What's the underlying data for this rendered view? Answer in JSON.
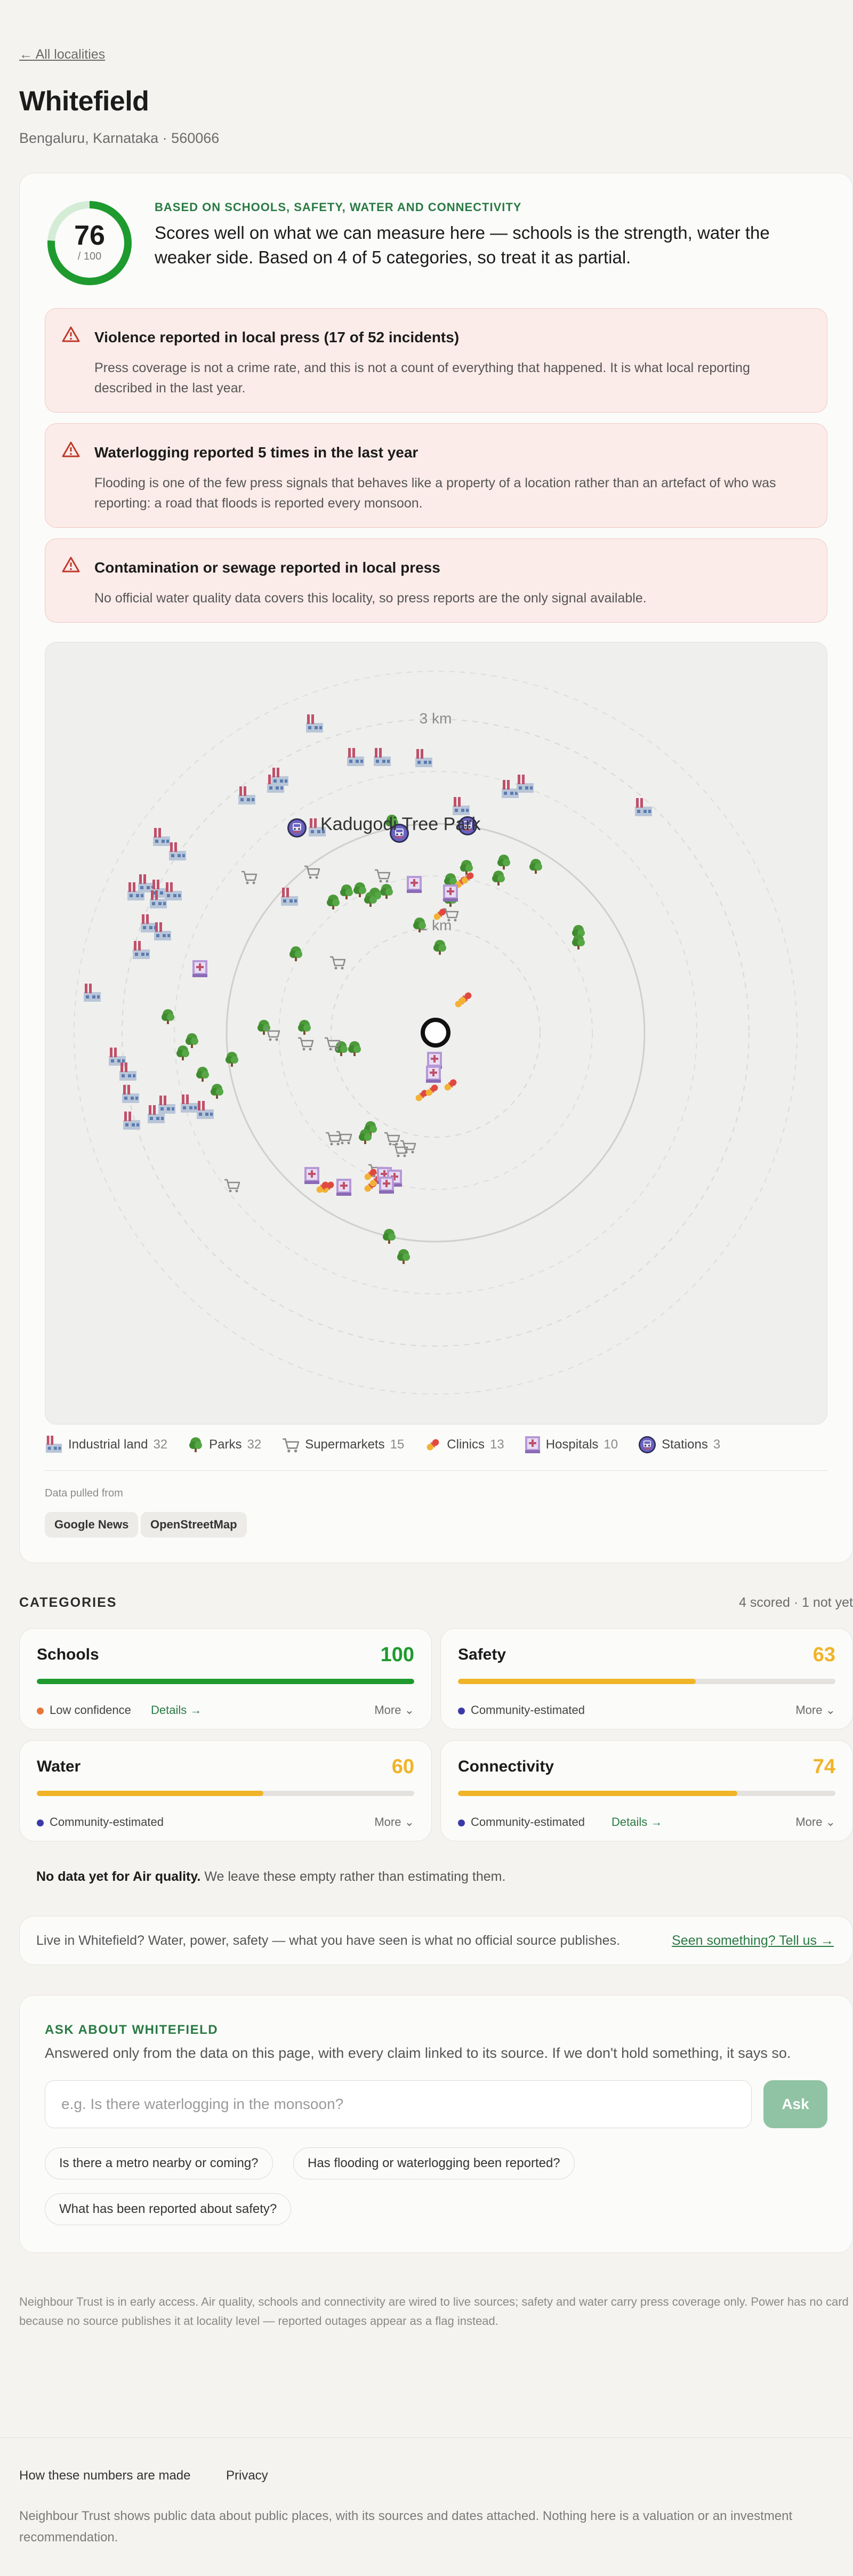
{
  "nav": {
    "back_label": "← All localities"
  },
  "locality": {
    "name": "Whitefield",
    "location": "Bengaluru, Karnataka · 560066"
  },
  "score": {
    "value": "76",
    "out_of": "/ 100",
    "fraction": 0.76,
    "kicker": "BASED ON SCHOOLS, SAFETY, WATER AND CONNECTIVITY",
    "summary": "Scores well on what we can measure here — schools is the strength, water the weaker side. Based on 4 of 5 categories, so treat it as partial."
  },
  "flags": [
    {
      "title": "Violence reported in local press (17 of 52 incidents)",
      "body": "Press coverage is not a crime rate, and this is not a count of everything that happened. It is what local reporting described in the last year."
    },
    {
      "title": "Waterlogging reported 5 times in the last year",
      "body": "Flooding is one of the few press signals that behaves like a property of a location rather than an artefact of who was reporting: a road that floods is reported every monsoon."
    },
    {
      "title": "Contamination or sewage reported in local press",
      "body": "No official water quality data covers this locality, so press reports are the only signal available."
    }
  ],
  "map": {
    "ring_labels": [
      "1 km",
      "3 km"
    ],
    "place_label": "Kadugodi Tree Park"
  },
  "legend": [
    {
      "label": "Industrial land",
      "count": "32",
      "icon": "factory-icon"
    },
    {
      "label": "Parks",
      "count": "32",
      "icon": "tree-icon"
    },
    {
      "label": "Supermarkets",
      "count": "15",
      "icon": "cart-icon"
    },
    {
      "label": "Clinics",
      "count": "13",
      "icon": "pill-icon"
    },
    {
      "label": "Hospitals",
      "count": "10",
      "icon": "hospital-icon"
    },
    {
      "label": "Stations",
      "count": "3",
      "icon": "station-icon"
    }
  ],
  "sources": {
    "heading": "Data pulled from",
    "items": [
      "Google News",
      "OpenStreetMap"
    ]
  },
  "categories": {
    "heading": "CATEGORIES",
    "meta": "4 scored · 1 not yet",
    "items": [
      {
        "name": "Schools",
        "score": "100",
        "fraction": 1.0,
        "color": "#1e9a2e",
        "confidence": "Low confidence",
        "dot_color": "#e8753a",
        "details": "Details →",
        "more": "More ⌄"
      },
      {
        "name": "Safety",
        "score": "63",
        "fraction": 0.63,
        "color": "#f0b429",
        "confidence": "Community-estimated",
        "dot_color": "#3b3aa8",
        "details": "",
        "more": "More ⌄"
      },
      {
        "name": "Water",
        "score": "60",
        "fraction": 0.6,
        "color": "#f0b429",
        "confidence": "Community-estimated",
        "dot_color": "#3b3aa8",
        "details": "",
        "more": "More ⌄"
      },
      {
        "name": "Connectivity",
        "score": "74",
        "fraction": 0.74,
        "color": "#f0b429",
        "confidence": "Community-estimated",
        "dot_color": "#3b3aa8",
        "details": "Details →",
        "more": "More ⌄"
      }
    ],
    "no_data_bold": "No data yet for Air quality.",
    "no_data_rest": " We leave these empty rather than estimating them."
  },
  "live": {
    "text": "Live in Whitefield? Water, power, safety — what you have seen is what no official source publishes.",
    "link": "Seen something? Tell us →"
  },
  "ask": {
    "kicker": "ASK ABOUT WHITEFIELD",
    "subtitle": "Answered only from the data on this page, with every claim linked to its source. If we don't hold something, it says so.",
    "placeholder": "e.g. Is there waterlogging in the monsoon?",
    "button": "Ask",
    "suggestions": [
      "Is there a metro nearby or coming?",
      "Has flooding or waterlogging been reported?",
      "What has been reported about safety?"
    ]
  },
  "fineprint": "Neighbour Trust is in early access. Air quality, schools and connectivity are wired to live sources; safety and water carry press coverage only. Power has no card because no source publishes it at locality level — reported outages appear as a flag instead.",
  "footer": {
    "links": [
      "How these numbers are made",
      "Privacy"
    ],
    "text": "Neighbour Trust shows public data about public places, with its sources and dates attached. Nothing here is a valuation or an investment recommendation."
  },
  "colors": {
    "accent_green": "#2a7a43",
    "score_green": "#1e9a2e",
    "amber": "#f0b429",
    "flag_bg": "#fbece9",
    "flag_icon": "#c0392b"
  }
}
